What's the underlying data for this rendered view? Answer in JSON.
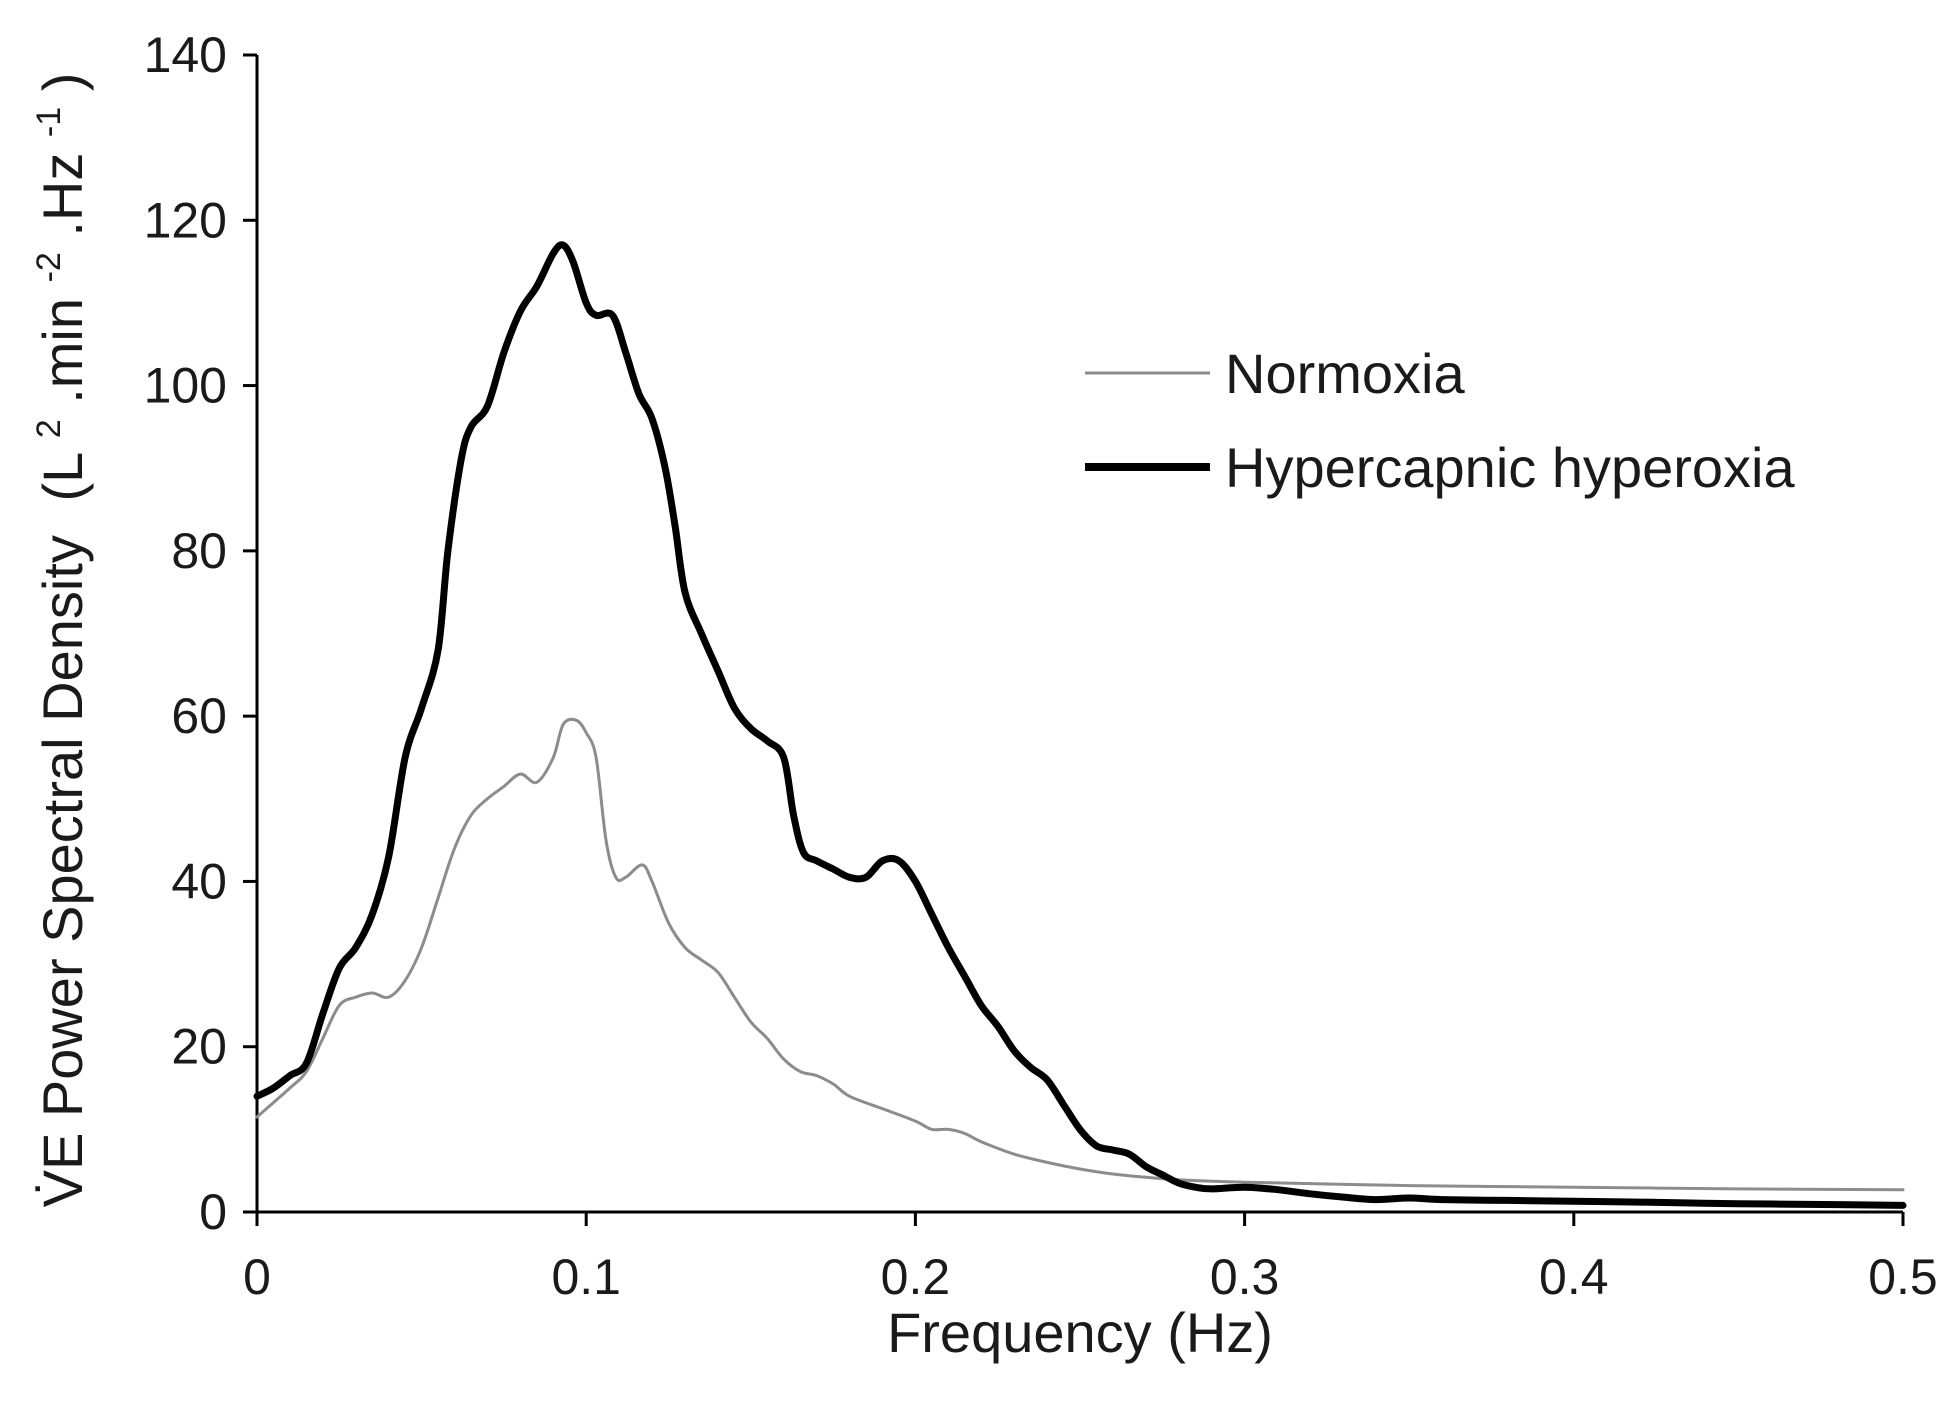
{
  "chart_data": {
    "type": "line",
    "title": "",
    "xlabel": "Frequency (Hz)",
    "ylabel_main": "V̇E Power Spectral Density",
    "ylabel_units": {
      "open": "(L",
      "sup1": "2",
      "mid1": ".min",
      "sup2": "-2",
      "mid2": ".Hz",
      "sup3": "-1",
      "close": ")"
    },
    "xlim": [
      0,
      0.5
    ],
    "ylim": [
      0,
      140
    ],
    "xticks": [
      0,
      0.1,
      0.2,
      0.3,
      0.4,
      0.5
    ],
    "xtick_labels": [
      "0",
      "0.1",
      "0.2",
      "0.3",
      "0.4",
      "0.5"
    ],
    "yticks": [
      0,
      20,
      40,
      60,
      80,
      100,
      120,
      140
    ],
    "ytick_labels": [
      "0",
      "20",
      "40",
      "60",
      "80",
      "100",
      "120",
      "140"
    ],
    "grid": false,
    "legend_position": "upper-right",
    "series": [
      {
        "name": "Normoxia",
        "color": "#8c8c8c",
        "style": "thin",
        "points": [
          [
            0,
            11.5
          ],
          [
            0.01,
            15
          ],
          [
            0.015,
            17
          ],
          [
            0.02,
            21
          ],
          [
            0.025,
            25
          ],
          [
            0.03,
            26
          ],
          [
            0.035,
            26.5
          ],
          [
            0.04,
            26
          ],
          [
            0.045,
            28
          ],
          [
            0.05,
            32
          ],
          [
            0.055,
            38
          ],
          [
            0.06,
            44
          ],
          [
            0.065,
            48
          ],
          [
            0.07,
            50
          ],
          [
            0.075,
            51.5
          ],
          [
            0.08,
            53
          ],
          [
            0.085,
            52
          ],
          [
            0.09,
            55
          ],
          [
            0.093,
            59
          ],
          [
            0.097,
            59.5
          ],
          [
            0.1,
            58
          ],
          [
            0.103,
            55
          ],
          [
            0.106,
            45
          ],
          [
            0.109,
            40.5
          ],
          [
            0.112,
            40.5
          ],
          [
            0.117,
            42
          ],
          [
            0.12,
            40
          ],
          [
            0.125,
            35
          ],
          [
            0.13,
            32
          ],
          [
            0.135,
            30.5
          ],
          [
            0.14,
            29
          ],
          [
            0.145,
            26
          ],
          [
            0.15,
            23
          ],
          [
            0.155,
            21
          ],
          [
            0.16,
            18.5
          ],
          [
            0.165,
            17
          ],
          [
            0.17,
            16.5
          ],
          [
            0.175,
            15.5
          ],
          [
            0.18,
            14
          ],
          [
            0.19,
            12.5
          ],
          [
            0.2,
            11
          ],
          [
            0.205,
            10
          ],
          [
            0.21,
            10
          ],
          [
            0.215,
            9.5
          ],
          [
            0.22,
            8.5
          ],
          [
            0.23,
            7
          ],
          [
            0.24,
            6
          ],
          [
            0.25,
            5.2
          ],
          [
            0.26,
            4.6
          ],
          [
            0.27,
            4.2
          ],
          [
            0.28,
            3.9
          ],
          [
            0.3,
            3.6
          ],
          [
            0.35,
            3.2
          ],
          [
            0.4,
            3.0
          ],
          [
            0.45,
            2.8
          ],
          [
            0.5,
            2.7
          ]
        ]
      },
      {
        "name": "Hypercapnic hyperoxia",
        "color": "#000000",
        "style": "thick",
        "points": [
          [
            0,
            14
          ],
          [
            0.005,
            15
          ],
          [
            0.01,
            16.5
          ],
          [
            0.015,
            18
          ],
          [
            0.02,
            24
          ],
          [
            0.025,
            29.5
          ],
          [
            0.03,
            32
          ],
          [
            0.035,
            36
          ],
          [
            0.04,
            43
          ],
          [
            0.045,
            55
          ],
          [
            0.05,
            61
          ],
          [
            0.055,
            68
          ],
          [
            0.058,
            80
          ],
          [
            0.062,
            91
          ],
          [
            0.065,
            95
          ],
          [
            0.07,
            97.5
          ],
          [
            0.075,
            104
          ],
          [
            0.08,
            109
          ],
          [
            0.085,
            112
          ],
          [
            0.09,
            116
          ],
          [
            0.093,
            117
          ],
          [
            0.096,
            115
          ],
          [
            0.1,
            110
          ],
          [
            0.103,
            108.5
          ],
          [
            0.108,
            108.5
          ],
          [
            0.112,
            104
          ],
          [
            0.116,
            99
          ],
          [
            0.12,
            96
          ],
          [
            0.124,
            90
          ],
          [
            0.127,
            83
          ],
          [
            0.13,
            75
          ],
          [
            0.135,
            70
          ],
          [
            0.14,
            65.5
          ],
          [
            0.145,
            61
          ],
          [
            0.15,
            58.5
          ],
          [
            0.155,
            57
          ],
          [
            0.16,
            55
          ],
          [
            0.163,
            48
          ],
          [
            0.166,
            43.5
          ],
          [
            0.17,
            42.5
          ],
          [
            0.175,
            41.5
          ],
          [
            0.18,
            40.5
          ],
          [
            0.185,
            40.5
          ],
          [
            0.19,
            42.5
          ],
          [
            0.195,
            42.5
          ],
          [
            0.2,
            40
          ],
          [
            0.205,
            36
          ],
          [
            0.21,
            32
          ],
          [
            0.215,
            28.5
          ],
          [
            0.22,
            25
          ],
          [
            0.225,
            22.5
          ],
          [
            0.23,
            19.5
          ],
          [
            0.235,
            17.5
          ],
          [
            0.24,
            16
          ],
          [
            0.245,
            13
          ],
          [
            0.25,
            10
          ],
          [
            0.255,
            8
          ],
          [
            0.26,
            7.5
          ],
          [
            0.265,
            7
          ],
          [
            0.27,
            5.5
          ],
          [
            0.275,
            4.5
          ],
          [
            0.28,
            3.5
          ],
          [
            0.285,
            3
          ],
          [
            0.29,
            2.8
          ],
          [
            0.3,
            3
          ],
          [
            0.31,
            2.7
          ],
          [
            0.32,
            2.2
          ],
          [
            0.33,
            1.8
          ],
          [
            0.34,
            1.5
          ],
          [
            0.35,
            1.7
          ],
          [
            0.36,
            1.5
          ],
          [
            0.38,
            1.4
          ],
          [
            0.4,
            1.3
          ],
          [
            0.42,
            1.2
          ],
          [
            0.45,
            1.0
          ],
          [
            0.48,
            0.9
          ],
          [
            0.5,
            0.8
          ]
        ]
      }
    ]
  }
}
